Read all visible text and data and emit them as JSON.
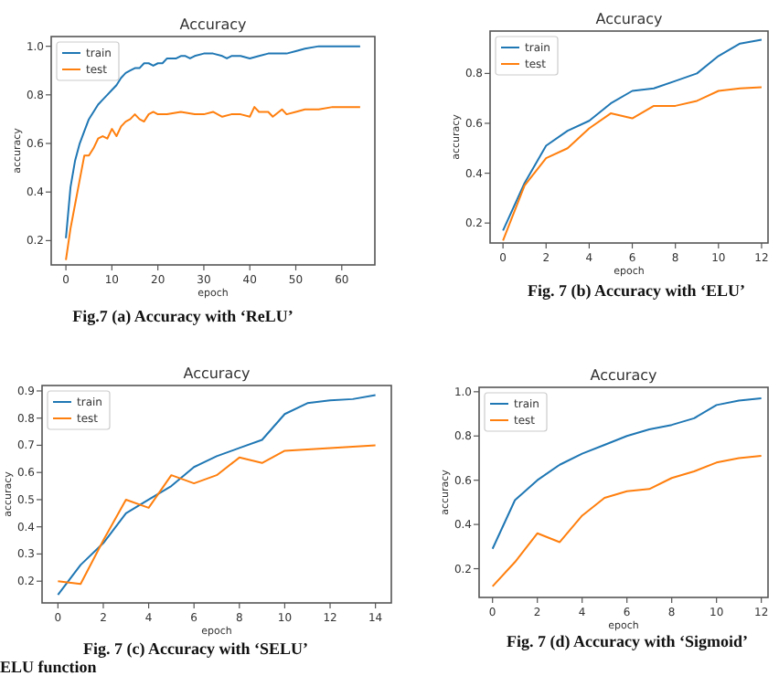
{
  "chart_data": [
    {
      "type": "line",
      "title": "Accuracy",
      "xlabel": "epoch",
      "ylabel": "accuracy",
      "xlim": [
        -3.2,
        67.2
      ],
      "ylim": [
        0.1,
        1.04
      ],
      "xticks": [
        0,
        10,
        20,
        30,
        40,
        50,
        60
      ],
      "yticks": [
        0.2,
        0.4,
        0.6,
        0.8,
        {
          "value": 1,
          "label": "1.0"
        }
      ],
      "grid": false,
      "legend": "top left",
      "annotations": [
        "Fig.7 (a) Accuracy with ‘ReLU’"
      ],
      "series": [
        {
          "name": "train",
          "color": "#1f77b4",
          "x": [
            0,
            1,
            2,
            3,
            4,
            5,
            6,
            7,
            8,
            9,
            10,
            11,
            12,
            13,
            14,
            15,
            16,
            17,
            18,
            19,
            20,
            21,
            22,
            23,
            24,
            25,
            26,
            27,
            28,
            30,
            32,
            34,
            35,
            36,
            38,
            40,
            42,
            44,
            46,
            48,
            50,
            52,
            55,
            60,
            64
          ],
          "values": [
            0.21,
            0.42,
            0.53,
            0.6,
            0.65,
            0.7,
            0.73,
            0.76,
            0.78,
            0.8,
            0.82,
            0.84,
            0.87,
            0.89,
            0.9,
            0.91,
            0.91,
            0.93,
            0.93,
            0.92,
            0.93,
            0.93,
            0.95,
            0.95,
            0.95,
            0.96,
            0.96,
            0.95,
            0.96,
            0.97,
            0.97,
            0.96,
            0.95,
            0.96,
            0.96,
            0.95,
            0.96,
            0.97,
            0.97,
            0.97,
            0.98,
            0.99,
            1.0,
            1.0,
            1.0
          ]
        },
        {
          "name": "test",
          "color": "#ff7f0e",
          "x": [
            0,
            1,
            2,
            3,
            4,
            5,
            6,
            7,
            8,
            9,
            10,
            11,
            12,
            13,
            14,
            15,
            16,
            17,
            18,
            19,
            20,
            22,
            25,
            28,
            30,
            32,
            34,
            36,
            38,
            40,
            41,
            42,
            44,
            45,
            47,
            48,
            50,
            52,
            55,
            58,
            60,
            64
          ],
          "values": [
            0.12,
            0.25,
            0.35,
            0.45,
            0.55,
            0.55,
            0.58,
            0.62,
            0.63,
            0.62,
            0.66,
            0.63,
            0.67,
            0.69,
            0.7,
            0.72,
            0.7,
            0.69,
            0.72,
            0.73,
            0.72,
            0.72,
            0.73,
            0.72,
            0.72,
            0.73,
            0.71,
            0.72,
            0.72,
            0.71,
            0.75,
            0.73,
            0.73,
            0.71,
            0.74,
            0.72,
            0.73,
            0.74,
            0.74,
            0.75,
            0.75,
            0.75
          ]
        }
      ]
    },
    {
      "type": "line",
      "title": "Accuracy",
      "xlabel": "epoch",
      "ylabel": "accuracy",
      "xlim": [
        -0.6,
        12.3
      ],
      "ylim": [
        0.12,
        0.97
      ],
      "xticks": [
        0,
        2,
        4,
        6,
        8,
        10,
        12
      ],
      "yticks": [
        0.2,
        0.4,
        0.6,
        0.8
      ],
      "grid": false,
      "legend": "top left",
      "annotations": [
        "Fig. 7 (b)  Accuracy with ‘ELU’"
      ],
      "series": [
        {
          "name": "train",
          "color": "#1f77b4",
          "x": [
            0,
            1,
            2,
            3,
            4,
            5,
            6,
            7,
            8,
            9,
            10,
            11,
            12
          ],
          "values": [
            0.17,
            0.36,
            0.51,
            0.57,
            0.61,
            0.68,
            0.73,
            0.74,
            0.77,
            0.8,
            0.87,
            0.92,
            0.935
          ]
        },
        {
          "name": "test",
          "color": "#ff7f0e",
          "x": [
            0,
            1,
            2,
            3,
            4,
            5,
            6,
            7,
            8,
            9,
            10,
            11,
            12
          ],
          "values": [
            0.13,
            0.35,
            0.46,
            0.5,
            0.58,
            0.64,
            0.62,
            0.67,
            0.67,
            0.69,
            0.73,
            0.74,
            0.745
          ]
        }
      ]
    },
    {
      "type": "line",
      "title": "Accuracy",
      "xlabel": "epoch",
      "ylabel": "accuracy",
      "xlim": [
        -0.7,
        14.7
      ],
      "ylim": [
        0.12,
        0.92
      ],
      "xticks": [
        0,
        2,
        4,
        6,
        8,
        10,
        12,
        14
      ],
      "yticks": [
        0.2,
        0.3,
        0.4,
        0.5,
        0.6,
        0.7,
        0.8,
        0.9
      ],
      "grid": false,
      "legend": "top left",
      "annotations": [
        "Fig. 7 (c) Accuracy with ‘SELU’",
        "ELU function"
      ],
      "series": [
        {
          "name": "train",
          "color": "#1f77b4",
          "x": [
            0,
            1,
            2,
            3,
            4,
            5,
            6,
            7,
            8,
            9,
            10,
            11,
            12,
            13,
            14
          ],
          "values": [
            0.15,
            0.26,
            0.34,
            0.45,
            0.5,
            0.55,
            0.62,
            0.66,
            0.69,
            0.72,
            0.815,
            0.855,
            0.865,
            0.87,
            0.885
          ]
        },
        {
          "name": "test",
          "color": "#ff7f0e",
          "x": [
            0,
            1,
            2,
            3,
            4,
            5,
            6,
            7,
            8,
            9,
            10,
            11,
            12,
            13,
            14
          ],
          "values": [
            0.2,
            0.19,
            0.35,
            0.5,
            0.47,
            0.59,
            0.56,
            0.59,
            0.655,
            0.635,
            0.68,
            0.685,
            0.69,
            0.695,
            0.7
          ]
        }
      ]
    },
    {
      "type": "line",
      "title": "Accuracy",
      "xlabel": "epoch",
      "ylabel": "accuracy",
      "xlim": [
        -0.6,
        12.3
      ],
      "ylim": [
        0.07,
        1.02
      ],
      "xticks": [
        0,
        2,
        4,
        6,
        8,
        10,
        12
      ],
      "yticks": [
        0.2,
        0.4,
        0.6,
        0.8,
        {
          "value": 1,
          "label": "1.0"
        }
      ],
      "grid": false,
      "legend": "top left",
      "annotations": [
        "Fig. 7 (d) Accuracy with ‘Sigmoid’"
      ],
      "series": [
        {
          "name": "train",
          "color": "#1f77b4",
          "x": [
            0,
            1,
            2,
            3,
            4,
            5,
            6,
            7,
            8,
            9,
            10,
            11,
            12
          ],
          "values": [
            0.29,
            0.51,
            0.6,
            0.67,
            0.72,
            0.76,
            0.8,
            0.83,
            0.85,
            0.88,
            0.94,
            0.96,
            0.97
          ]
        },
        {
          "name": "test",
          "color": "#ff7f0e",
          "x": [
            0,
            1,
            2,
            3,
            4,
            5,
            6,
            7,
            8,
            9,
            10,
            11,
            12
          ],
          "values": [
            0.12,
            0.23,
            0.36,
            0.32,
            0.44,
            0.52,
            0.55,
            0.56,
            0.61,
            0.64,
            0.68,
            0.7,
            0.71
          ]
        }
      ]
    }
  ]
}
